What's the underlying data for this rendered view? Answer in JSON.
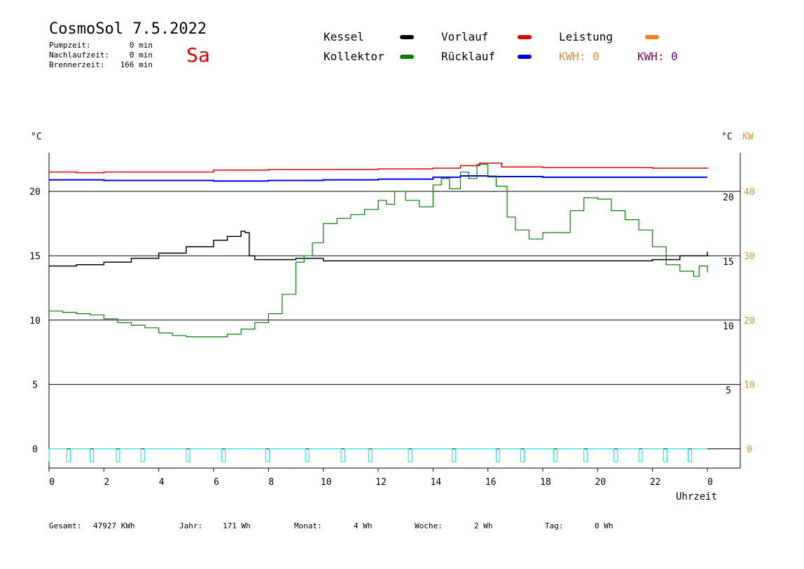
{
  "header": {
    "title": "CosmoSol 7.5.2022",
    "day": "Sa",
    "stats": [
      {
        "label": "Pumpzeit:",
        "value": "0 min"
      },
      {
        "label": "Nachlaufzeit:",
        "value": "0 min"
      },
      {
        "label": "Brennerzeit:",
        "value": "166 min"
      }
    ]
  },
  "legend": {
    "kessel": "Kessel",
    "kollektor": "Kollektor",
    "vorlauf": "Vorlauf",
    "ruecklauf": "Rücklauf",
    "leistung": "Leistung",
    "kwh1": "KWH: 0",
    "kwh2": "KWH: 0",
    "colors": {
      "kessel": "#000000",
      "kollektor": "#008000",
      "vorlauf": "#e00000",
      "ruecklauf": "#0000e0",
      "leistung": "#f08020",
      "kwh1": "#e09030",
      "kwh2": "#800080",
      "pump": "#00e0e0"
    }
  },
  "footer": {
    "gesamt_label": "Gesamt:",
    "gesamt_value": "47927 KWh",
    "jahr_label": "Jahr:",
    "jahr_value": "171 Wh",
    "monat_label": "Monat:",
    "monat_value": "4 Wh",
    "woche_label": "Woche:",
    "woche_value": "2 Wh",
    "tag_label": "Tag:",
    "tag_value": "0 Wh"
  },
  "chart_data": {
    "type": "line",
    "xlabel": "Uhrzeit",
    "left_unit": "°C",
    "right_unit_c": "°C",
    "right_unit_kw": "KW",
    "xlim": [
      0,
      24
    ],
    "ylim": [
      -1.5,
      23
    ],
    "x_ticks": [
      "0",
      "2",
      "4",
      "6",
      "8",
      "10",
      "12",
      "14",
      "16",
      "18",
      "20",
      "22",
      "0"
    ],
    "left_ticks": [
      0,
      5,
      10,
      15,
      20
    ],
    "right_ticks_c": [
      5,
      10,
      15,
      20
    ],
    "right_ticks_kw": [
      0,
      10,
      20,
      30,
      40
    ],
    "grid": true,
    "series": [
      {
        "name": "Vorlauf",
        "x": [
          0,
          1,
          2,
          4,
          6,
          8,
          10,
          12,
          14,
          15,
          15.7,
          16.5,
          18,
          20,
          22,
          24
        ],
        "y": [
          21.5,
          21.45,
          21.5,
          21.5,
          21.65,
          21.7,
          21.7,
          21.75,
          21.8,
          22.0,
          22.2,
          21.9,
          21.85,
          21.85,
          21.8,
          21.85
        ]
      },
      {
        "name": "Rücklauf",
        "x": [
          0,
          2,
          4,
          6,
          8,
          10,
          12,
          14,
          15,
          16,
          18,
          20,
          22,
          24
        ],
        "y": [
          20.9,
          20.85,
          20.85,
          20.8,
          20.85,
          20.9,
          20.95,
          21.1,
          21.2,
          21.15,
          21.1,
          21.1,
          21.1,
          21.1
        ]
      },
      {
        "name": "Kessel",
        "x": [
          0,
          1,
          2,
          3,
          4,
          5,
          6,
          6.5,
          7,
          7.15,
          7.3,
          7.5,
          8,
          9,
          10,
          12,
          14,
          16,
          17,
          18,
          20,
          22,
          23,
          24
        ],
        "y": [
          14.2,
          14.3,
          14.5,
          14.8,
          15.2,
          15.7,
          16.2,
          16.5,
          16.9,
          16.8,
          15.0,
          14.7,
          14.7,
          14.8,
          14.6,
          14.6,
          14.6,
          14.6,
          14.6,
          14.6,
          14.6,
          14.7,
          15.0,
          15.3
        ]
      },
      {
        "name": "Kollektor",
        "x": [
          0,
          0.5,
          1,
          1.5,
          2,
          2.5,
          3,
          3.5,
          4,
          4.5,
          5,
          5.5,
          6,
          6.5,
          7,
          7.5,
          8,
          8.5,
          9,
          9.3,
          9.6,
          10,
          10.5,
          11,
          11.5,
          12,
          12.3,
          12.6,
          13,
          13.5,
          14,
          14.3,
          14.6,
          15,
          15.3,
          15.6,
          16,
          16.3,
          16.7,
          17,
          17.5,
          18,
          18.5,
          19,
          19.5,
          20,
          20.5,
          21,
          21.5,
          22,
          22.5,
          23,
          23.5,
          23.7,
          24
        ],
        "y": [
          10.7,
          10.6,
          10.5,
          10.4,
          10.1,
          9.8,
          9.6,
          9.4,
          9.0,
          8.8,
          8.7,
          8.7,
          8.7,
          8.9,
          9.3,
          9.8,
          10.5,
          12.0,
          14.5,
          15.0,
          16.0,
          17.5,
          17.9,
          18.2,
          18.6,
          19.3,
          19.0,
          20.0,
          19.3,
          18.8,
          20.5,
          21.0,
          20.2,
          21.5,
          21.0,
          22.1,
          21.2,
          20.4,
          18.0,
          17.0,
          16.3,
          16.8,
          16.8,
          18.5,
          19.5,
          19.4,
          18.5,
          17.8,
          17.0,
          15.7,
          14.3,
          13.8,
          13.4,
          14.2,
          13.7
        ]
      }
    ],
    "pump_pulses": [
      0.7,
      1.55,
      2.5,
      3.4,
      5.05,
      6.35,
      7.95,
      9.4,
      10.7,
      11.7,
      13.15,
      14.75,
      16.35,
      17.25,
      18.45,
      19.55,
      20.65,
      21.55,
      22.45,
      23.35
    ]
  }
}
